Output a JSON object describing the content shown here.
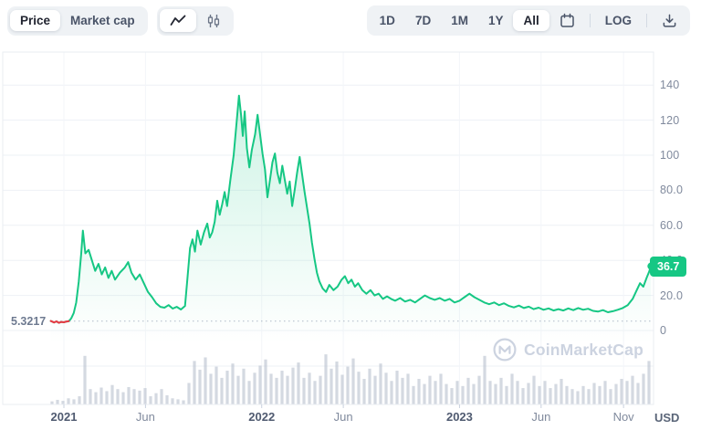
{
  "toolbar": {
    "view_toggle": {
      "options": [
        "Price",
        "Market cap"
      ],
      "selected": "Price"
    },
    "chart_type": {
      "options": [
        {
          "icon": "line-chart-icon"
        },
        {
          "icon": "candlestick-icon"
        }
      ],
      "selected_index": 0
    },
    "ranges": {
      "options": [
        "1D",
        "7D",
        "1M",
        "1Y",
        "All"
      ],
      "selected": "All"
    },
    "calendar_icon": "calendar-icon",
    "log_label": "LOG",
    "download_icon": "download-icon"
  },
  "chart": {
    "unit_label": "USD",
    "start_price_label": "5.3217",
    "current_price_label": "36.7",
    "watermark": "CoinMarketCap",
    "y_axis": {
      "values": [
        140,
        120,
        100,
        80,
        60,
        40,
        20,
        0
      ],
      "labels": [
        "140",
        "120",
        "100",
        "80.0",
        "60.0",
        "40.0",
        "20.0",
        "0"
      ]
    },
    "x_axis": {
      "ticks": [
        {
          "m": 0,
          "label": "2021",
          "year": true
        },
        {
          "m": 4.95,
          "label": "Jun",
          "year": false
        },
        {
          "m": 12,
          "label": "2022",
          "year": true
        },
        {
          "m": 16.95,
          "label": "Jun",
          "year": false
        },
        {
          "m": 24,
          "label": "2023",
          "year": true
        },
        {
          "m": 28.95,
          "label": "Jun",
          "year": false
        },
        {
          "m": 33.95,
          "label": "Nov",
          "year": false
        }
      ]
    }
  },
  "chart_data": {
    "type": "line",
    "title": "",
    "xlabel": "",
    "ylabel": "USD",
    "x_unit": "months since 2021-01",
    "ylim": [
      0,
      150
    ],
    "grid": true,
    "start_price": 5.3217,
    "current_price": 36.7,
    "start_segment_max_m": 0.3,
    "price_series": [
      [
        -0.8,
        5.4
      ],
      [
        -0.6,
        4.6
      ],
      [
        -0.45,
        5.2
      ],
      [
        -0.3,
        4.4
      ],
      [
        -0.15,
        4.9
      ],
      [
        0,
        4.7
      ],
      [
        0.15,
        5.1
      ],
      [
        0.3,
        5.3
      ],
      [
        0.45,
        7
      ],
      [
        0.6,
        10
      ],
      [
        0.75,
        16
      ],
      [
        0.9,
        28
      ],
      [
        1.05,
        44
      ],
      [
        1.15,
        57
      ],
      [
        1.3,
        44
      ],
      [
        1.5,
        46
      ],
      [
        1.7,
        40
      ],
      [
        1.9,
        34
      ],
      [
        2.1,
        38
      ],
      [
        2.3,
        32
      ],
      [
        2.5,
        36
      ],
      [
        2.7,
        30
      ],
      [
        2.9,
        34
      ],
      [
        3.1,
        29
      ],
      [
        3.4,
        33
      ],
      [
        3.7,
        36
      ],
      [
        3.9,
        39
      ],
      [
        4.1,
        33
      ],
      [
        4.35,
        29
      ],
      [
        4.6,
        32
      ],
      [
        4.85,
        27
      ],
      [
        5.1,
        22
      ],
      [
        5.35,
        19
      ],
      [
        5.6,
        15.5
      ],
      [
        5.85,
        13.5
      ],
      [
        6.1,
        13
      ],
      [
        6.35,
        14.5
      ],
      [
        6.6,
        12.5
      ],
      [
        6.85,
        13.5
      ],
      [
        7.1,
        12
      ],
      [
        7.35,
        14
      ],
      [
        7.5,
        30
      ],
      [
        7.65,
        47
      ],
      [
        7.8,
        52
      ],
      [
        7.95,
        45
      ],
      [
        8.1,
        57
      ],
      [
        8.3,
        49
      ],
      [
        8.5,
        56
      ],
      [
        8.7,
        61
      ],
      [
        8.85,
        53
      ],
      [
        9.0,
        56
      ],
      [
        9.15,
        62
      ],
      [
        9.3,
        74
      ],
      [
        9.45,
        66
      ],
      [
        9.6,
        72
      ],
      [
        9.75,
        79
      ],
      [
        9.9,
        71
      ],
      [
        10.1,
        86
      ],
      [
        10.3,
        100
      ],
      [
        10.5,
        121
      ],
      [
        10.62,
        134
      ],
      [
        10.75,
        123
      ],
      [
        10.85,
        111
      ],
      [
        10.97,
        125
      ],
      [
        11.1,
        104
      ],
      [
        11.25,
        93
      ],
      [
        11.4,
        103
      ],
      [
        11.6,
        112
      ],
      [
        11.75,
        123
      ],
      [
        11.9,
        112
      ],
      [
        12.05,
        101
      ],
      [
        12.2,
        92
      ],
      [
        12.35,
        76
      ],
      [
        12.5,
        86
      ],
      [
        12.65,
        96
      ],
      [
        12.8,
        101
      ],
      [
        12.95,
        90
      ],
      [
        13.1,
        84
      ],
      [
        13.25,
        94
      ],
      [
        13.4,
        86
      ],
      [
        13.55,
        78
      ],
      [
        13.7,
        85
      ],
      [
        13.85,
        71
      ],
      [
        14.0,
        80
      ],
      [
        14.15,
        90
      ],
      [
        14.3,
        99
      ],
      [
        14.45,
        89
      ],
      [
        14.6,
        79
      ],
      [
        14.75,
        70
      ],
      [
        14.9,
        61
      ],
      [
        15.05,
        50
      ],
      [
        15.2,
        41
      ],
      [
        15.35,
        33
      ],
      [
        15.5,
        28
      ],
      [
        15.7,
        24
      ],
      [
        15.9,
        22
      ],
      [
        16.1,
        26
      ],
      [
        16.35,
        23
      ],
      [
        16.6,
        25
      ],
      [
        16.85,
        29
      ],
      [
        17.05,
        31
      ],
      [
        17.25,
        27
      ],
      [
        17.45,
        29
      ],
      [
        17.65,
        25
      ],
      [
        17.85,
        27
      ],
      [
        18.1,
        23
      ],
      [
        18.35,
        21
      ],
      [
        18.6,
        23
      ],
      [
        18.85,
        20
      ],
      [
        19.1,
        21
      ],
      [
        19.35,
        18
      ],
      [
        19.6,
        19.5
      ],
      [
        19.85,
        18
      ],
      [
        20.1,
        17
      ],
      [
        20.4,
        18.5
      ],
      [
        20.7,
        16.5
      ],
      [
        21.0,
        17.5
      ],
      [
        21.3,
        16
      ],
      [
        21.6,
        18
      ],
      [
        21.9,
        20
      ],
      [
        22.2,
        18.5
      ],
      [
        22.5,
        17.5
      ],
      [
        22.8,
        18.5
      ],
      [
        23.1,
        17
      ],
      [
        23.4,
        18
      ],
      [
        23.7,
        16
      ],
      [
        24.0,
        17
      ],
      [
        24.3,
        19
      ],
      [
        24.6,
        21
      ],
      [
        24.9,
        19
      ],
      [
        25.2,
        17.5
      ],
      [
        25.5,
        16
      ],
      [
        25.8,
        15
      ],
      [
        26.1,
        16
      ],
      [
        26.4,
        14.5
      ],
      [
        26.7,
        15.5
      ],
      [
        27.0,
        14
      ],
      [
        27.3,
        13.2
      ],
      [
        27.6,
        14.2
      ],
      [
        27.9,
        12.8
      ],
      [
        28.2,
        13.6
      ],
      [
        28.5,
        12.2
      ],
      [
        28.8,
        13
      ],
      [
        29.1,
        11.8
      ],
      [
        29.4,
        12.6
      ],
      [
        29.7,
        11.4
      ],
      [
        30.0,
        12.2
      ],
      [
        30.3,
        11.4
      ],
      [
        30.6,
        12.6
      ],
      [
        30.9,
        11.6
      ],
      [
        31.2,
        12.8
      ],
      [
        31.5,
        11.8
      ],
      [
        31.8,
        12.4
      ],
      [
        32.1,
        11.2
      ],
      [
        32.4,
        10.8
      ],
      [
        32.7,
        11.6
      ],
      [
        33.0,
        10.4
      ],
      [
        33.3,
        11.0
      ],
      [
        33.6,
        11.8
      ],
      [
        33.9,
        12.8
      ],
      [
        34.2,
        14.5
      ],
      [
        34.5,
        18
      ],
      [
        34.75,
        23
      ],
      [
        34.95,
        27
      ],
      [
        35.15,
        25
      ],
      [
        35.35,
        30
      ],
      [
        35.5,
        33.5
      ],
      [
        35.62,
        36.7
      ]
    ],
    "volume_bars": [
      0.06,
      0.09,
      0.07,
      0.12,
      0.1,
      0.16,
      0.95,
      0.3,
      0.24,
      0.33,
      0.26,
      0.38,
      0.3,
      0.24,
      0.34,
      0.3,
      0.27,
      0.32,
      0.16,
      0.22,
      0.3,
      0.18,
      0.12,
      0.1,
      0.08,
      0.42,
      0.85,
      0.68,
      0.92,
      0.6,
      0.74,
      0.52,
      0.66,
      0.8,
      0.56,
      0.7,
      0.46,
      0.62,
      0.76,
      0.88,
      0.6,
      0.52,
      0.66,
      0.56,
      0.72,
      0.82,
      0.52,
      0.62,
      0.46,
      0.56,
      0.98,
      0.7,
      0.84,
      0.58,
      0.74,
      0.9,
      0.64,
      0.5,
      0.7,
      0.56,
      0.8,
      0.62,
      0.46,
      0.66,
      0.52,
      0.6,
      0.36,
      0.5,
      0.4,
      0.56,
      0.46,
      0.6,
      0.4,
      0.32,
      0.46,
      0.36,
      0.52,
      0.4,
      0.56,
      0.95,
      0.46,
      0.4,
      0.52,
      0.36,
      0.6,
      0.46,
      0.32,
      0.42,
      0.56,
      0.36,
      0.46,
      0.32,
      0.4,
      0.5,
      0.36,
      0.3,
      0.26,
      0.36,
      0.3,
      0.42,
      0.36,
      0.46,
      0.3,
      0.4,
      0.5,
      0.46,
      0.56,
      0.42,
      0.6,
      0.85
    ]
  },
  "colors": {
    "line_green": "#16c784",
    "start_red": "#ea3943",
    "badge_bg": "#16c784",
    "grid": "#eef1f6",
    "grid_vertical": "#f3f5f9",
    "border": "#e9edf2",
    "dotted_line": "#b3bac9",
    "axis_text": "#808a9d",
    "year_text": "#4f5a70",
    "volume_bar": "#b1b9c9",
    "toolbar_bg": "#eff2f5",
    "toolbar_text": "#4a5468",
    "selected_text": "#222531",
    "watermark": "#ccd3e0"
  }
}
